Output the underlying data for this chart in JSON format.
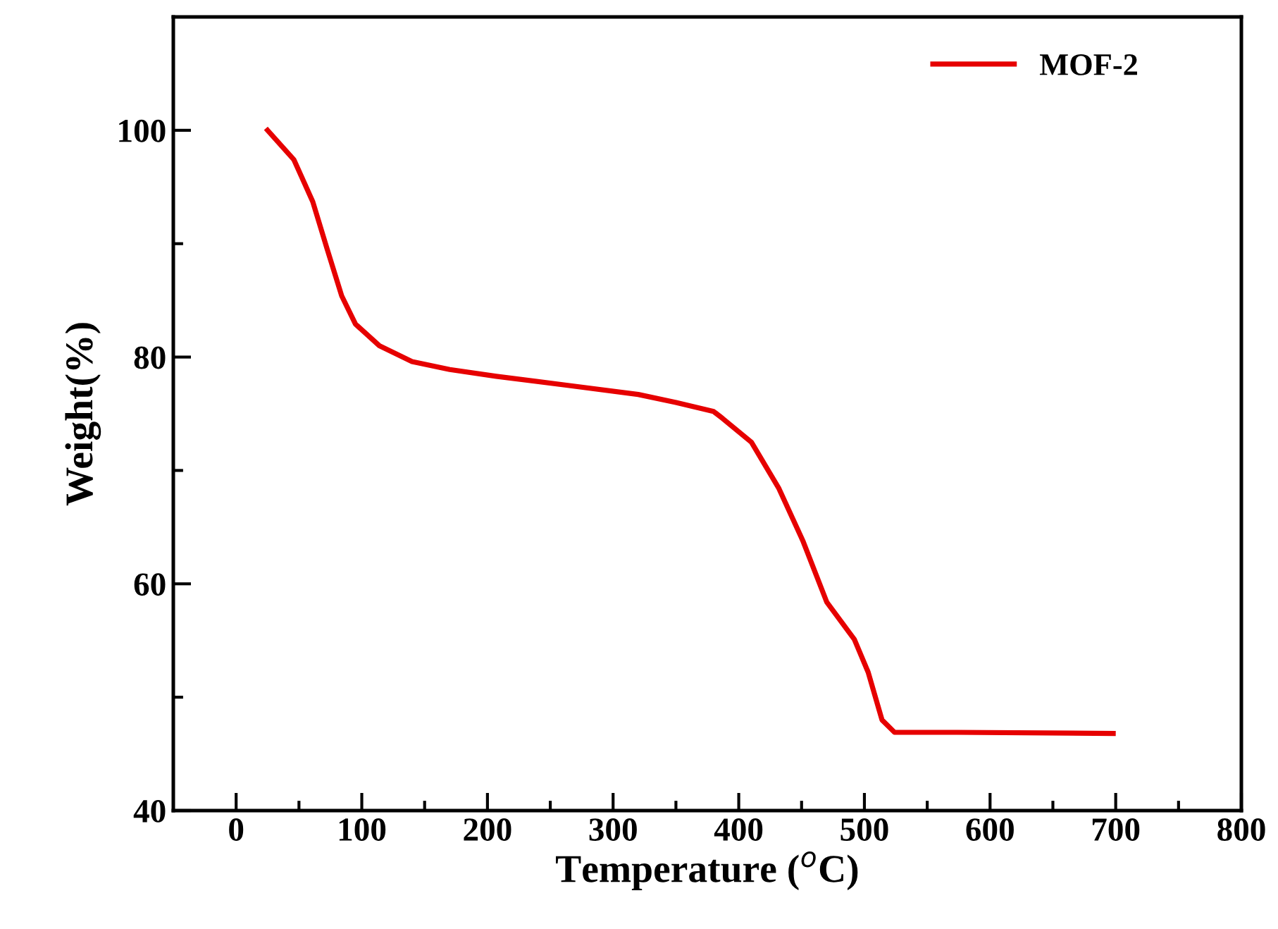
{
  "chart_data": {
    "type": "line",
    "xlabel": "Temperature ($^{o}$C)",
    "ylabel": "Weight(%)",
    "x": [
      25,
      46,
      61,
      72.5,
      84,
      95,
      114,
      140,
      170,
      207,
      264,
      320,
      350,
      380,
      387,
      410,
      432,
      451,
      470,
      492,
      503,
      514,
      524,
      574,
      698
    ],
    "series": [
      {
        "name": "MOF-2",
        "color": "#e60000",
        "values": [
          100,
          97.4,
          93.7,
          89.5,
          85.4,
          82.9,
          81.0,
          79.6,
          78.9,
          78.3,
          77.5,
          76.7,
          76.0,
          75.2,
          74.6,
          72.5,
          68.4,
          63.8,
          58.4,
          55.1,
          52.2,
          48.0,
          46.9,
          46.9,
          46.8
        ]
      }
    ],
    "xlim": [
      -50,
      800
    ],
    "ylim": [
      40,
      110
    ],
    "xticks": [
      0,
      {
        "value": 50,
        "label": null
      },
      100,
      {
        "value": 150,
        "label": null
      },
      200,
      {
        "value": 250,
        "label": null
      },
      300,
      {
        "value": 350,
        "label": null
      },
      400,
      {
        "value": 450,
        "label": null
      },
      500,
      {
        "value": 550,
        "label": null
      },
      600,
      {
        "value": 650,
        "label": null
      },
      700,
      {
        "value": 750,
        "label": null
      },
      800
    ],
    "yticks": [
      40,
      {
        "value": 50,
        "label": null
      },
      60,
      {
        "value": 70,
        "label": null
      },
      80,
      {
        "value": 90,
        "label": null
      },
      100
    ],
    "legend": "top right",
    "grid": false,
    "line_style": "solid",
    "marker": "none"
  }
}
